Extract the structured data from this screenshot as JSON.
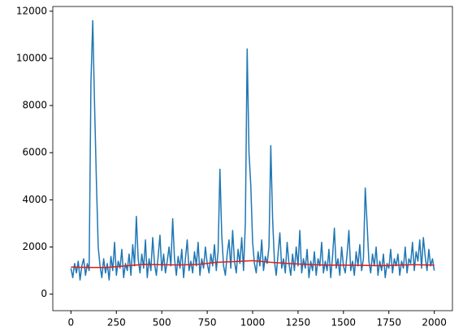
{
  "chart_data": {
    "type": "line",
    "xlim": [
      -100,
      2100
    ],
    "ylim": [
      -700,
      12200
    ],
    "xticks": [
      0,
      250,
      500,
      750,
      1000,
      1250,
      1500,
      1750,
      2000
    ],
    "yticks": [
      0,
      2000,
      4000,
      6000,
      8000,
      10000,
      12000
    ],
    "series": [
      {
        "color": "#1f77b4",
        "x": [
          0,
          10,
          20,
          30,
          40,
          50,
          60,
          70,
          80,
          90,
          100,
          110,
          120,
          130,
          140,
          150,
          160,
          170,
          180,
          190,
          200,
          210,
          220,
          230,
          240,
          250,
          260,
          270,
          280,
          290,
          300,
          310,
          320,
          330,
          340,
          350,
          360,
          370,
          380,
          390,
          400,
          410,
          420,
          430,
          440,
          450,
          460,
          470,
          480,
          490,
          500,
          510,
          520,
          530,
          540,
          550,
          560,
          570,
          580,
          590,
          600,
          610,
          620,
          630,
          640,
          650,
          660,
          670,
          680,
          690,
          700,
          710,
          720,
          730,
          740,
          750,
          760,
          770,
          780,
          790,
          800,
          810,
          820,
          830,
          840,
          850,
          860,
          870,
          880,
          890,
          900,
          910,
          920,
          930,
          940,
          950,
          960,
          970,
          980,
          990,
          1000,
          1010,
          1020,
          1030,
          1040,
          1050,
          1060,
          1070,
          1080,
          1090,
          1100,
          1110,
          1120,
          1130,
          1140,
          1150,
          1160,
          1170,
          1180,
          1190,
          1200,
          1210,
          1220,
          1230,
          1240,
          1250,
          1260,
          1270,
          1280,
          1290,
          1300,
          1310,
          1320,
          1330,
          1340,
          1350,
          1360,
          1370,
          1380,
          1390,
          1400,
          1410,
          1420,
          1430,
          1440,
          1450,
          1460,
          1470,
          1480,
          1490,
          1500,
          1510,
          1520,
          1530,
          1540,
          1550,
          1560,
          1570,
          1580,
          1590,
          1600,
          1610,
          1620,
          1630,
          1640,
          1650,
          1660,
          1670,
          1680,
          1690,
          1700,
          1710,
          1720,
          1730,
          1740,
          1750,
          1760,
          1770,
          1780,
          1790,
          1800,
          1810,
          1820,
          1830,
          1840,
          1850,
          1860,
          1870,
          1880,
          1890,
          1900,
          1910,
          1920,
          1930,
          1940,
          1950,
          1960,
          1970,
          1980,
          1990,
          2000
        ],
        "values": [
          1100,
          700,
          1300,
          900,
          1400,
          600,
          1200,
          1500,
          800,
          1300,
          1000,
          9000,
          11600,
          8000,
          4800,
          2000,
          1200,
          700,
          1500,
          900,
          1300,
          600,
          1600,
          1000,
          2200,
          800,
          1400,
          1100,
          1900,
          700,
          1300,
          1000,
          1700,
          800,
          2100,
          1200,
          3300,
          1500,
          900,
          1700,
          1100,
          2300,
          700,
          1500,
          1000,
          2400,
          1300,
          800,
          1600,
          2500,
          1000,
          1700,
          900,
          1400,
          2000,
          1200,
          3200,
          1500,
          800,
          1600,
          1100,
          1900,
          700,
          1500,
          2300,
          1000,
          1400,
          900,
          1800,
          1200,
          2200,
          800,
          1500,
          1100,
          2000,
          1300,
          900,
          1700,
          1200,
          2100,
          1000,
          1800,
          5300,
          2500,
          1200,
          800,
          1700,
          2300,
          1100,
          2700,
          1400,
          900,
          1900,
          1300,
          2400,
          1000,
          3000,
          10400,
          6000,
          4600,
          2200,
          1300,
          900,
          1800,
          1200,
          2300,
          1000,
          1600,
          1300,
          2000,
          6300,
          3200,
          1400,
          800,
          1700,
          2600,
          1100,
          1500,
          900,
          2200,
          1300,
          800,
          1700,
          1000,
          2000,
          1200,
          2700,
          900,
          1500,
          1100,
          1900,
          700,
          1400,
          1000,
          1800,
          800,
          1500,
          1200,
          2200,
          900,
          1400,
          1000,
          1900,
          700,
          1600,
          2800,
          1100,
          1500,
          800,
          2000,
          1200,
          900,
          1700,
          2700,
          1000,
          1400,
          800,
          1800,
          1200,
          2100,
          1000,
          1500,
          4500,
          3000,
          1400,
          900,
          1700,
          1200,
          2000,
          800,
          1400,
          1000,
          1700,
          700,
          1300,
          1100,
          1900,
          900,
          1500,
          1200,
          1700,
          800,
          1400,
          1100,
          2000,
          900,
          1500,
          1300,
          2200,
          1000,
          1800,
          1400,
          2300,
          1100,
          2400,
          1600,
          1000,
          1900,
          1200,
          1500,
          1000
        ]
      },
      {
        "color": "#e31a1c",
        "x": [
          0,
          100,
          200,
          300,
          400,
          500,
          600,
          700,
          800,
          900,
          1000,
          1100,
          1200,
          1300,
          1400,
          1500,
          1600,
          1700,
          1800,
          1900,
          2000
        ],
        "values": [
          1150,
          1130,
          1130,
          1200,
          1260,
          1250,
          1240,
          1260,
          1350,
          1380,
          1420,
          1350,
          1300,
          1260,
          1230,
          1230,
          1220,
          1210,
          1230,
          1250,
          1230
        ]
      }
    ]
  }
}
